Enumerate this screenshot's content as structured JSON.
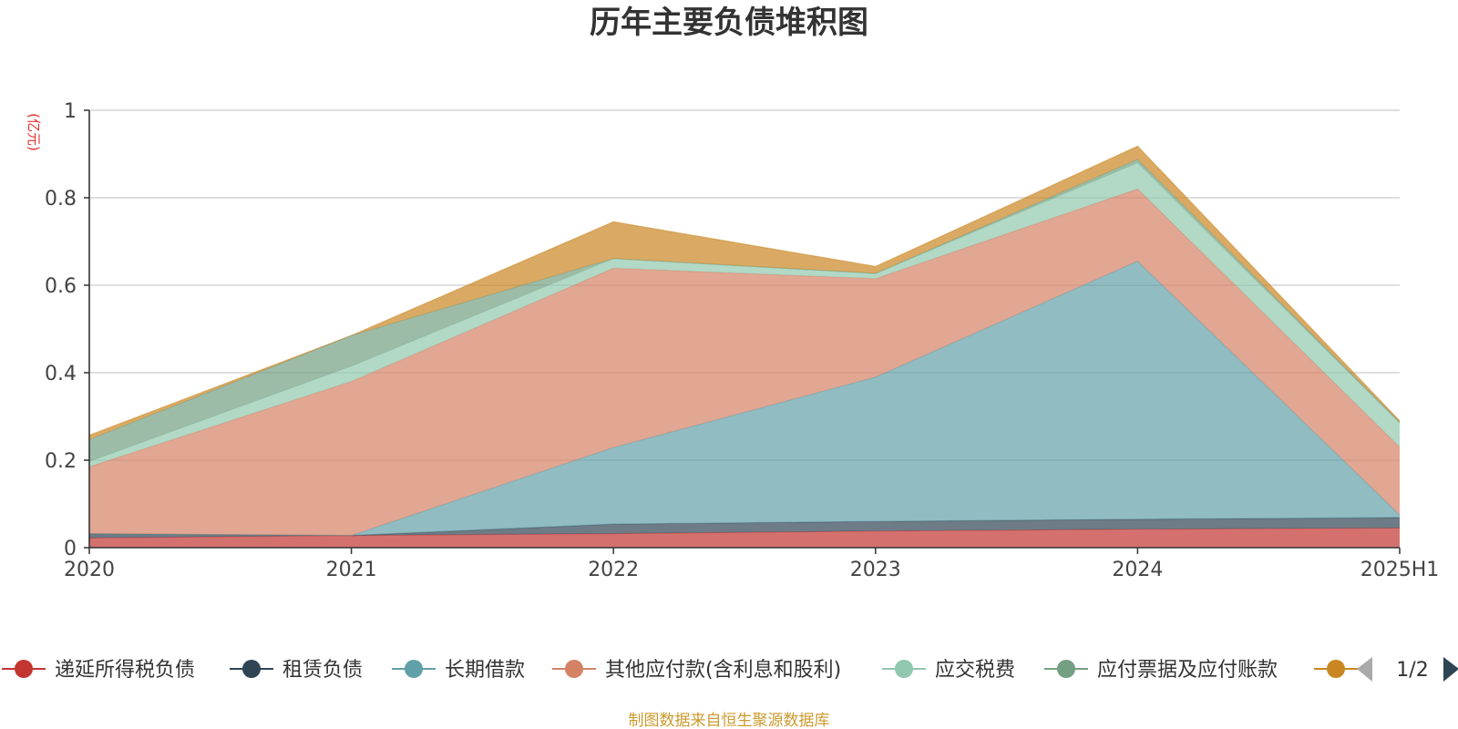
{
  "chart_data": {
    "type": "area",
    "stacked": true,
    "title": "历年主要负债堆积图",
    "unit_label": "(亿元)",
    "source": "制图数据来自恒生聚源数据库",
    "categories": [
      "2020",
      "2021",
      "2022",
      "2023",
      "2024",
      "2025H1"
    ],
    "ylim": [
      0,
      1
    ],
    "yticks": [
      "0",
      "0.2",
      "0.4",
      "0.6",
      "0.8",
      "1"
    ],
    "grid": true,
    "legend_position": "bottom",
    "legend_page": "1/2",
    "series": [
      {
        "name": "递延所得税负债",
        "color": "#c23531",
        "values": [
          0.022,
          0.028,
          0.032,
          0.038,
          0.042,
          0.045
        ]
      },
      {
        "name": "租赁负债",
        "color": "#2f4554",
        "values": [
          0.01,
          0.0,
          0.022,
          0.022,
          0.023,
          0.024
        ]
      },
      {
        "name": "长期借款",
        "color": "#61a0a8",
        "values": [
          0.0,
          0.0,
          0.175,
          0.33,
          0.59,
          0.006
        ]
      },
      {
        "name": "其他应付款(含利息和股利)",
        "color": "#d48265",
        "values": [
          0.153,
          0.352,
          0.41,
          0.225,
          0.165,
          0.155
        ]
      },
      {
        "name": "应交税费",
        "color": "#91c7ae",
        "values": [
          0.012,
          0.035,
          0.022,
          0.012,
          0.06,
          0.055
        ]
      },
      {
        "name": "应付票据及应付账款",
        "color": "#749f83",
        "values": [
          0.05,
          0.07,
          0.0,
          0.0,
          0.008,
          0.002
        ]
      },
      {
        "name": "",
        "color": "#ca8622",
        "values": [
          0.01,
          0.0,
          0.084,
          0.016,
          0.03,
          0.003
        ]
      }
    ]
  }
}
